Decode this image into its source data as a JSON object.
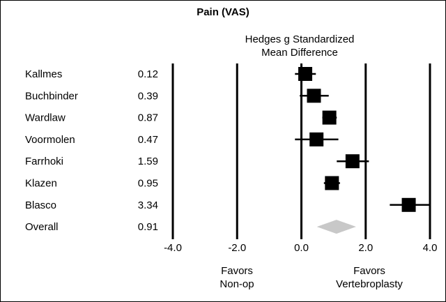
{
  "chart_data": {
    "type": "forest",
    "title": "Pain (VAS)",
    "subtitle": "Hedges g Standardized\nMean Difference",
    "studies": [
      {
        "label": "Kallmes",
        "value": "0.12",
        "g": 0.12,
        "ci": [
          -0.2,
          0.45
        ]
      },
      {
        "label": "Buchbinder",
        "value": "0.39",
        "g": 0.39,
        "ci": [
          -0.05,
          0.85
        ]
      },
      {
        "label": "Wardlaw",
        "value": "0.87",
        "g": 0.87,
        "ci": [
          0.65,
          1.1
        ]
      },
      {
        "label": "Voormolen",
        "value": "0.47",
        "g": 0.47,
        "ci": [
          -0.2,
          1.15
        ]
      },
      {
        "label": "Farrhoki",
        "value": "1.59",
        "g": 1.59,
        "ci": [
          1.1,
          2.1
        ]
      },
      {
        "label": "Klazen",
        "value": "0.95",
        "g": 0.95,
        "ci": [
          0.7,
          1.2
        ]
      },
      {
        "label": "Blasco",
        "value": "3.34",
        "g": 3.34,
        "ci": [
          2.75,
          4.0
        ]
      }
    ],
    "overall": {
      "label": "Overall",
      "value": "0.91",
      "g": 0.91,
      "ci": [
        0.48,
        1.7
      ]
    },
    "xlim": [
      -4.0,
      4.0
    ],
    "xticks": [
      -4.0,
      -2.0,
      0.0,
      2.0,
      4.0
    ],
    "xtick_labels": [
      "-4.0",
      "-2.0",
      "0.0",
      "2.0",
      "4.0"
    ],
    "reference_lines": [
      -4.0,
      -2.0,
      0.0,
      2.0,
      4.0
    ],
    "favors_left": "Favors\nNon-op",
    "favors_right": "Favors\nVertebroplasty",
    "colors": {
      "marker": "#000000",
      "overall": "#c8c8c8",
      "lines": "#000000"
    }
  }
}
